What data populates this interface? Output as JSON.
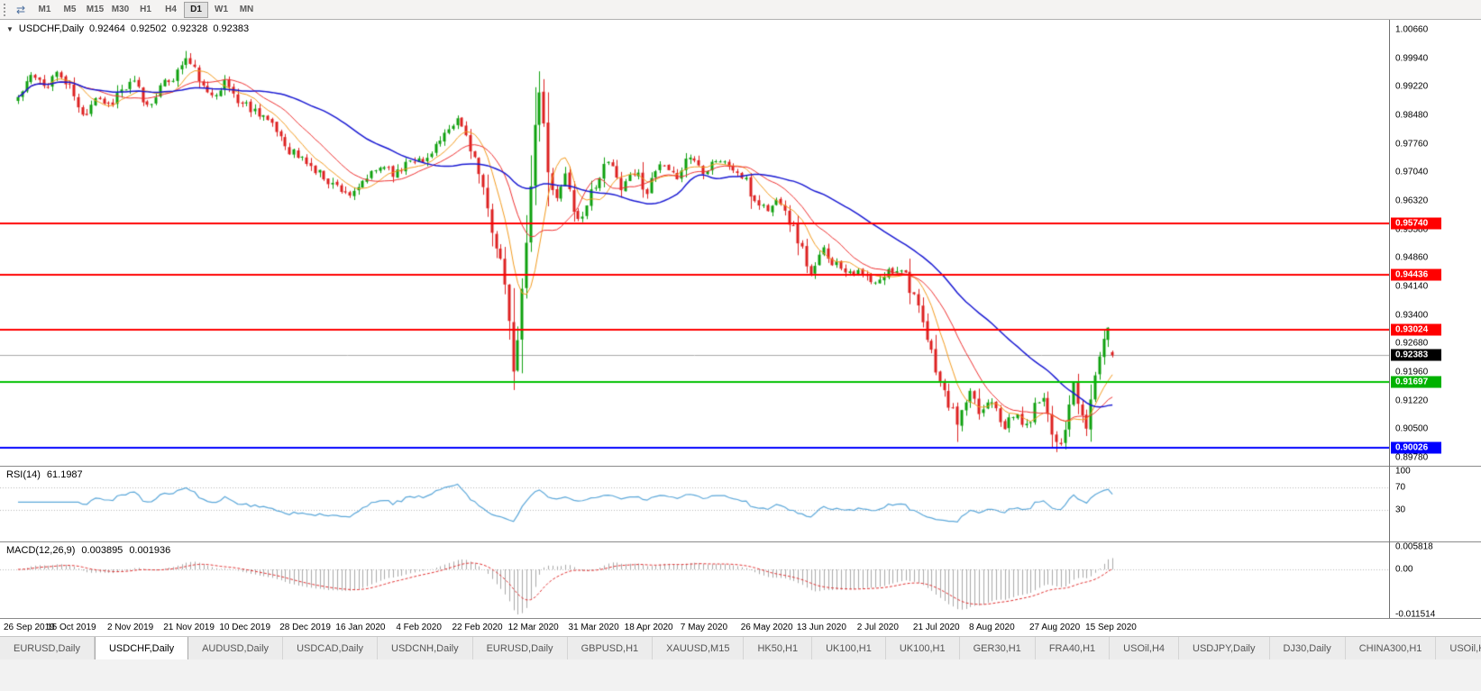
{
  "toolbar": {
    "timeframes": [
      "M1",
      "M5",
      "M15",
      "M30",
      "H1",
      "H4",
      "D1",
      "W1",
      "MN"
    ],
    "active_timeframe": "D1"
  },
  "header": {
    "symbol": "USDCHF,Daily",
    "open": "0.92464",
    "high": "0.92502",
    "low": "0.92328",
    "close": "0.92383"
  },
  "price_axis": {
    "top_value": 1.0066,
    "bottom_value": 0.8978,
    "ticks": [
      "1.00660",
      "0.99940",
      "0.99220",
      "0.98480",
      "0.97760",
      "0.97040",
      "0.96320",
      "0.95580",
      "0.94860",
      "0.94140",
      "0.93400",
      "0.92680",
      "0.91960",
      "0.91220",
      "0.90500",
      "0.89780"
    ],
    "badges": [
      {
        "value": "0.95740",
        "price": 0.9574,
        "color": "#ff0000"
      },
      {
        "value": "0.94436",
        "price": 0.94436,
        "color": "#ff0000"
      },
      {
        "value": "0.93024",
        "price": 0.93024,
        "color": "#ff0000"
      },
      {
        "value": "0.92383",
        "price": 0.92383,
        "color": "#000000"
      },
      {
        "value": "0.91697",
        "price": 0.91697,
        "color": "#00b200"
      },
      {
        "value": "0.90026",
        "price": 0.90026,
        "color": "#0000ff"
      }
    ]
  },
  "indicators": {
    "rsi": {
      "label": "RSI(14)",
      "value": "61.1987",
      "period": 14,
      "ticks": [
        {
          "text": "100",
          "v": 100
        },
        {
          "text": "70",
          "v": 70
        },
        {
          "text": "30",
          "v": 30
        }
      ],
      "levels": [
        70,
        30
      ],
      "line_color": "#5ba7d9"
    },
    "macd": {
      "label": "MACD(12,26,9)",
      "value_main": "0.003895",
      "value_signal": "0.001936",
      "fast": 12,
      "slow": 26,
      "signal": 9,
      "ticks": [
        {
          "text": "0.005818",
          "v": 0.005818
        },
        {
          "text": "0.00",
          "v": 0
        },
        {
          "text": "-0.011514",
          "v": -0.011514
        }
      ],
      "histogram_color": "#a8a8a8",
      "signal_color": "#e03030"
    }
  },
  "x_axis": {
    "dates": [
      "26 Sep 2019",
      "15 Oct 2019",
      "2 Nov 2019",
      "21 Nov 2019",
      "10 Dec 2019",
      "28 Dec 2019",
      "16 Jan 2020",
      "4 Feb 2020",
      "22 Feb 2020",
      "12 Mar 2020",
      "31 Mar 2020",
      "18 Apr 2020",
      "7 May 2020",
      "26 May 2020",
      "13 Jun 2020",
      "2 Jul 2020",
      "21 Jul 2020",
      "8 Aug 2020",
      "27 Aug 2020",
      "15 Sep 2020"
    ]
  },
  "tabs": {
    "active_index": 1,
    "items": [
      "EURUSD,Daily",
      "USDCHF,Daily",
      "AUDUSD,Daily",
      "USDCAD,Daily",
      "USDCNH,Daily",
      "EURUSD,Daily",
      "GBPUSD,H1",
      "XAUUSD,M15",
      "HK50,H1",
      "UK100,H1",
      "UK100,H1",
      "GER30,H1",
      "FRA40,H1",
      "USOil,H4",
      "USDJPY,Daily",
      "DJ30,Daily",
      "CHINA300,H1",
      "USOil,H"
    ],
    "icons": {
      "active_marker": "none"
    }
  },
  "chart_data": {
    "type": "candlestick",
    "title": "USDCHF,Daily",
    "x_range": [
      "26 Sep 2019",
      "25 Sep 2020"
    ],
    "y_range": [
      0.8978,
      1.0066
    ],
    "last_ohlc": {
      "open": 0.92464,
      "high": 0.92502,
      "low": 0.92328,
      "close": 0.92383
    },
    "key_levels": [
      {
        "price": 0.9574,
        "color": "#ff0000",
        "width": 2,
        "role": "resistance"
      },
      {
        "price": 0.94436,
        "color": "#ff0000",
        "width": 2,
        "role": "resistance"
      },
      {
        "price": 0.93024,
        "color": "#ff0000",
        "width": 2,
        "role": "resistance"
      },
      {
        "price": 0.91697,
        "color": "#00c000",
        "width": 2,
        "role": "support"
      },
      {
        "price": 0.90026,
        "color": "#0000ff",
        "width": 2,
        "role": "support"
      }
    ],
    "current_price_line": {
      "price": 0.92383,
      "color": "#a8a8a8",
      "width": 1
    },
    "moving_averages": [
      {
        "period": 8,
        "color": "#f29a1e",
        "width": 1
      },
      {
        "period": 16,
        "color": "#ee3030",
        "width": 1
      },
      {
        "period": 40,
        "color": "#1818d2",
        "width": 1.5
      }
    ],
    "candles": {
      "count": 255,
      "seed": 11,
      "noise": 0.0028,
      "colors": {
        "up": "#0ea00e",
        "down": "#dd2020"
      },
      "anchors": [
        [
          0,
          0.9895
        ],
        [
          3,
          0.9948
        ],
        [
          6,
          0.9922
        ],
        [
          9,
          0.9956
        ],
        [
          12,
          0.9918
        ],
        [
          15,
          0.9845
        ],
        [
          18,
          0.9898
        ],
        [
          21,
          0.9876
        ],
        [
          24,
          0.9912
        ],
        [
          27,
          0.9928
        ],
        [
          30,
          0.9872
        ],
        [
          33,
          0.9918
        ],
        [
          36,
          0.9946
        ],
        [
          39,
          0.9992
        ],
        [
          41,
          0.9962
        ],
        [
          44,
          0.9898
        ],
        [
          48,
          0.9928
        ],
        [
          52,
          0.9878
        ],
        [
          56,
          0.9858
        ],
        [
          60,
          0.9808
        ],
        [
          63,
          0.9762
        ],
        [
          66,
          0.9736
        ],
        [
          70,
          0.97
        ],
        [
          74,
          0.9668
        ],
        [
          78,
          0.9644
        ],
        [
          81,
          0.969
        ],
        [
          85,
          0.9722
        ],
        [
          88,
          0.97
        ],
        [
          91,
          0.9744
        ],
        [
          94,
          0.9728
        ],
        [
          97,
          0.9774
        ],
        [
          100,
          0.98
        ],
        [
          102,
          0.9838
        ],
        [
          104,
          0.9798
        ],
        [
          106,
          0.9738
        ],
        [
          108,
          0.9652
        ],
        [
          110,
          0.956
        ],
        [
          112,
          0.948
        ],
        [
          114,
          0.933
        ],
        [
          115,
          0.9185
        ],
        [
          116,
          0.928
        ],
        [
          117,
          0.94
        ],
        [
          118,
          0.952
        ],
        [
          119,
          0.968
        ],
        [
          120,
          0.983
        ],
        [
          121,
          0.9902
        ],
        [
          122,
          0.9828
        ],
        [
          123,
          0.97
        ],
        [
          125,
          0.9632
        ],
        [
          127,
          0.9712
        ],
        [
          129,
          0.9606
        ],
        [
          131,
          0.9582
        ],
        [
          134,
          0.9678
        ],
        [
          137,
          0.9728
        ],
        [
          140,
          0.9672
        ],
        [
          143,
          0.9706
        ],
        [
          146,
          0.966
        ],
        [
          149,
          0.9718
        ],
        [
          152,
          0.969
        ],
        [
          156,
          0.9744
        ],
        [
          159,
          0.9712
        ],
        [
          162,
          0.9738
        ],
        [
          165,
          0.972
        ],
        [
          168,
          0.9692
        ],
        [
          171,
          0.9632
        ],
        [
          174,
          0.961
        ],
        [
          177,
          0.9636
        ],
        [
          180,
          0.956
        ],
        [
          182,
          0.9506
        ],
        [
          184,
          0.944
        ],
        [
          187,
          0.9504
        ],
        [
          190,
          0.947
        ],
        [
          193,
          0.9456
        ],
        [
          196,
          0.944
        ],
        [
          199,
          0.9416
        ],
        [
          202,
          0.945
        ],
        [
          205,
          0.9464
        ],
        [
          208,
          0.9392
        ],
        [
          210,
          0.9312
        ],
        [
          212,
          0.9242
        ],
        [
          214,
          0.9172
        ],
        [
          216,
          0.9112
        ],
        [
          218,
          0.9072
        ],
        [
          221,
          0.9136
        ],
        [
          223,
          0.9092
        ],
        [
          226,
          0.913
        ],
        [
          229,
          0.9062
        ],
        [
          232,
          0.9086
        ],
        [
          234,
          0.9052
        ],
        [
          236,
          0.9108
        ],
        [
          238,
          0.9142
        ],
        [
          240,
          0.904
        ],
        [
          242,
          0.9016
        ],
        [
          244,
          0.9102
        ],
        [
          245,
          0.9166
        ],
        [
          246,
          0.9116
        ],
        [
          247,
          0.9072
        ],
        [
          248,
          0.9056
        ],
        [
          249,
          0.9124
        ],
        [
          250,
          0.9186
        ],
        [
          251,
          0.9242
        ],
        [
          252,
          0.928
        ],
        [
          253,
          0.9296
        ],
        [
          254,
          0.92383
        ]
      ],
      "spikes": [
        {
          "i": 39,
          "high": 1.0012
        },
        {
          "i": 115,
          "low": 0.9158
        },
        {
          "i": 121,
          "high": 0.9922
        },
        {
          "i": 218,
          "low": 0.9018
        },
        {
          "i": 241,
          "low": 0.8992
        },
        {
          "i": 253,
          "high": 0.9303
        }
      ]
    }
  }
}
